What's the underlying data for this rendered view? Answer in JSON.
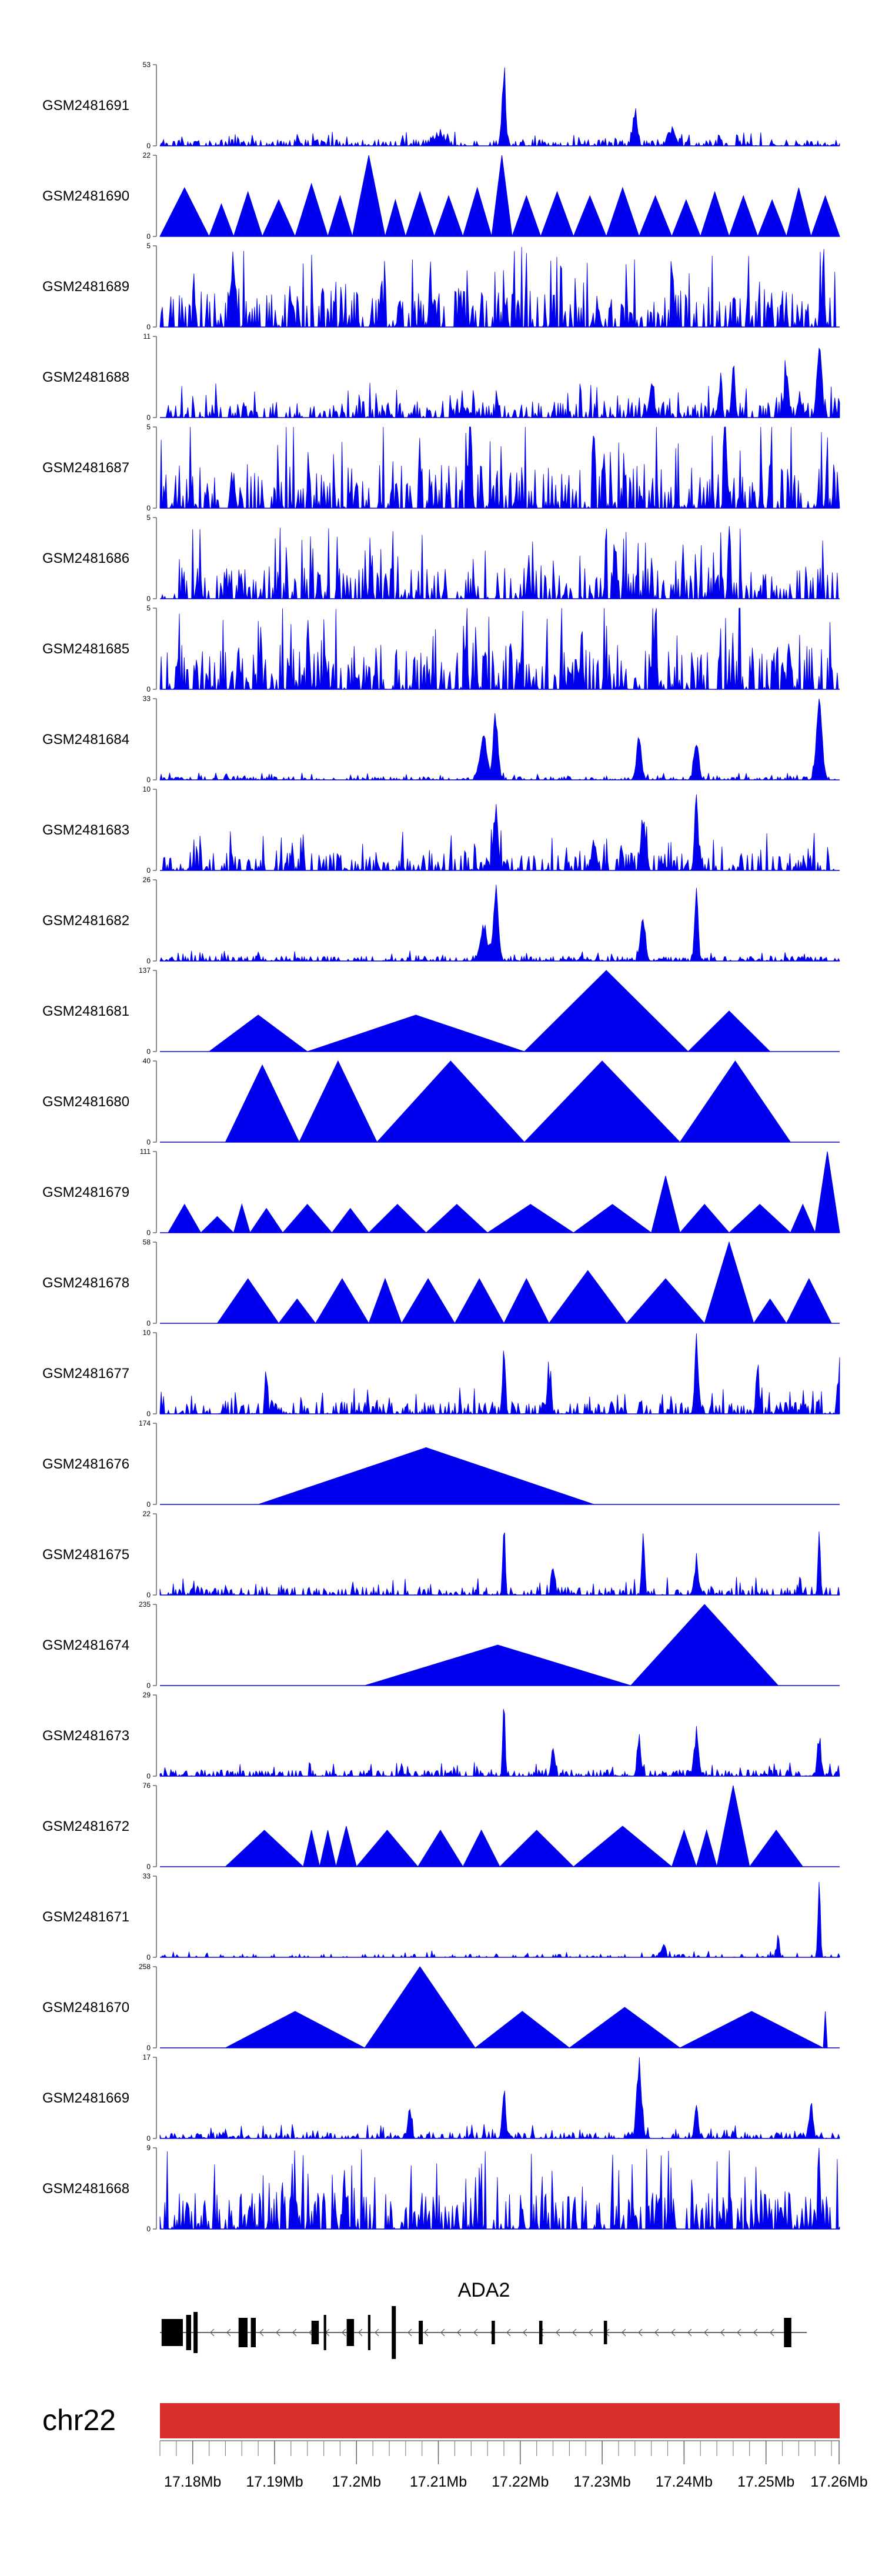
{
  "chart_data": {
    "type": "area",
    "title": "",
    "colors": {
      "signal": "#0000ee",
      "ideogram": "#d9302c",
      "gene": "#000000"
    },
    "x_range": [
      17.176,
      17.259
    ],
    "x_unit": "Mb",
    "x_ticks": [
      "17.18Mb",
      "17.19Mb",
      "17.2Mb",
      "17.21Mb",
      "17.22Mb",
      "17.23Mb",
      "17.24Mb",
      "17.25Mb",
      "17.26Mb"
    ],
    "x_tick_values": [
      17.18,
      17.19,
      17.2,
      17.21,
      17.22,
      17.23,
      17.24,
      17.25,
      17.26
    ],
    "chromosome": "chr22",
    "gene": {
      "name": "ADA2",
      "strand": "-",
      "start": 17.176,
      "end": 17.255
    },
    "tracks": [
      {
        "name": "GSM2481691",
        "ymax": 53,
        "ymin": 0,
        "style": "noise",
        "density": 1.0,
        "scale": 0.08,
        "peaks": [
          [
            17.218,
            1.0,
            0.0003
          ],
          [
            17.234,
            0.42,
            0.0004
          ],
          [
            17.2385,
            0.2,
            0.0006
          ],
          [
            17.21,
            0.12,
            0.001
          ]
        ]
      },
      {
        "name": "GSM2481690",
        "ymax": 22,
        "ymin": 0,
        "style": "triangles",
        "tri": [
          [
            17.176,
            17.182,
            0.6
          ],
          [
            17.182,
            17.185,
            0.4
          ],
          [
            17.185,
            17.1885,
            0.55
          ],
          [
            17.1885,
            17.1925,
            0.45
          ],
          [
            17.1925,
            17.1965,
            0.65
          ],
          [
            17.1965,
            17.1995,
            0.5
          ],
          [
            17.1995,
            17.2035,
            1.0
          ],
          [
            17.2035,
            17.206,
            0.45
          ],
          [
            17.206,
            17.2095,
            0.55
          ],
          [
            17.2095,
            17.213,
            0.5
          ],
          [
            17.213,
            17.2165,
            0.6
          ],
          [
            17.2165,
            17.219,
            1.0
          ],
          [
            17.219,
            17.2225,
            0.5
          ],
          [
            17.2225,
            17.2265,
            0.55
          ],
          [
            17.2265,
            17.2305,
            0.5
          ],
          [
            17.2305,
            17.2345,
            0.6
          ],
          [
            17.2345,
            17.2385,
            0.5
          ],
          [
            17.2385,
            17.242,
            0.45
          ],
          [
            17.242,
            17.2455,
            0.55
          ],
          [
            17.2455,
            17.249,
            0.5
          ],
          [
            17.249,
            17.2525,
            0.45
          ],
          [
            17.2525,
            17.2555,
            0.6
          ],
          [
            17.2555,
            17.259,
            0.5
          ]
        ]
      },
      {
        "name": "GSM2481689",
        "ymax": 5,
        "ymin": 0,
        "style": "noise",
        "density": 1.0,
        "scale": 0.45,
        "peaks": [
          [
            17.185,
            0.9,
            0.0002
          ],
          [
            17.209,
            0.8,
            0.0002
          ],
          [
            17.257,
            0.95,
            0.0002
          ]
        ]
      },
      {
        "name": "GSM2481688",
        "ymax": 11,
        "ymin": 0,
        "style": "noise",
        "density": 1.0,
        "scale": 0.2,
        "peaks": [
          [
            17.2565,
            0.95,
            0.0004
          ],
          [
            17.246,
            0.7,
            0.0003
          ],
          [
            17.2445,
            0.65,
            0.0002
          ],
          [
            17.2525,
            0.5,
            0.0004
          ],
          [
            17.236,
            0.4,
            0.0004
          ]
        ]
      },
      {
        "name": "GSM2481687",
        "ymax": 5,
        "ymin": 0,
        "style": "noise",
        "density": 1.0,
        "scale": 0.55,
        "peaks": [
          [
            17.214,
            0.95,
            0.0002
          ],
          [
            17.245,
            0.9,
            0.0002
          ]
        ]
      },
      {
        "name": "GSM2481686",
        "ymax": 5,
        "ymin": 0,
        "style": "noise",
        "density": 1.0,
        "scale": 0.4,
        "peaks": [
          [
            17.2455,
            0.95,
            0.0002
          ],
          [
            17.2315,
            0.8,
            0.0002
          ]
        ]
      },
      {
        "name": "GSM2481685",
        "ymax": 5,
        "ymin": 0,
        "style": "noise",
        "density": 1.0,
        "scale": 0.55,
        "peaks": [
          [
            17.2275,
            0.95,
            0.0002
          ],
          [
            17.2365,
            0.9,
            0.0002
          ]
        ]
      },
      {
        "name": "GSM2481684",
        "ymax": 33,
        "ymin": 0,
        "style": "noise",
        "density": 1.0,
        "scale": 0.04,
        "peaks": [
          [
            17.217,
            0.9,
            0.0004
          ],
          [
            17.2155,
            0.6,
            0.0006
          ],
          [
            17.2345,
            0.6,
            0.0004
          ],
          [
            17.2415,
            0.55,
            0.0004
          ],
          [
            17.2565,
            1.0,
            0.0005
          ]
        ]
      },
      {
        "name": "GSM2481683",
        "ymax": 10,
        "ymin": 0,
        "style": "noise",
        "density": 1.0,
        "scale": 0.22,
        "peaks": [
          [
            17.217,
            0.8,
            0.0004
          ],
          [
            17.235,
            0.65,
            0.0004
          ],
          [
            17.2415,
            1.0,
            0.0003
          ],
          [
            17.229,
            0.4,
            0.0004
          ]
        ]
      },
      {
        "name": "GSM2481682",
        "ymax": 26,
        "ymin": 0,
        "style": "noise",
        "density": 1.0,
        "scale": 0.06,
        "peaks": [
          [
            17.217,
            1.0,
            0.0004
          ],
          [
            17.2155,
            0.45,
            0.0006
          ],
          [
            17.235,
            0.6,
            0.0004
          ],
          [
            17.2415,
            0.9,
            0.0003
          ]
        ]
      },
      {
        "name": "GSM2481681",
        "ymax": 137,
        "ymin": 0,
        "style": "triangles",
        "tri": [
          [
            17.182,
            17.194,
            0.45
          ],
          [
            17.194,
            17.2205,
            0.45
          ],
          [
            17.2205,
            17.2405,
            1.0
          ],
          [
            17.2405,
            17.2505,
            0.5
          ]
        ]
      },
      {
        "name": "GSM2481680",
        "ymax": 40,
        "ymin": 0,
        "style": "triangles",
        "tri": [
          [
            17.184,
            17.193,
            0.95
          ],
          [
            17.193,
            17.2025,
            1.0
          ],
          [
            17.2025,
            17.2205,
            1.0
          ],
          [
            17.2205,
            17.2395,
            1.0
          ],
          [
            17.2395,
            17.253,
            1.0
          ]
        ]
      },
      {
        "name": "GSM2481679",
        "ymax": 111,
        "ymin": 0,
        "style": "triangles",
        "tri": [
          [
            17.177,
            17.181,
            0.35
          ],
          [
            17.181,
            17.185,
            0.2
          ],
          [
            17.185,
            17.187,
            0.35
          ],
          [
            17.187,
            17.191,
            0.3
          ],
          [
            17.191,
            17.197,
            0.35
          ],
          [
            17.197,
            17.2015,
            0.3
          ],
          [
            17.2015,
            17.2085,
            0.35
          ],
          [
            17.2085,
            17.216,
            0.35
          ],
          [
            17.216,
            17.2265,
            0.35
          ],
          [
            17.2265,
            17.236,
            0.35
          ],
          [
            17.236,
            17.2395,
            0.7
          ],
          [
            17.2395,
            17.2455,
            0.35
          ],
          [
            17.2455,
            17.253,
            0.35
          ],
          [
            17.253,
            17.256,
            0.35
          ],
          [
            17.256,
            17.259,
            1.0
          ]
        ]
      },
      {
        "name": "GSM2481678",
        "ymax": 58,
        "ymin": 0,
        "style": "triangles",
        "tri": [
          [
            17.183,
            17.1905,
            0.55
          ],
          [
            17.1905,
            17.195,
            0.3
          ],
          [
            17.195,
            17.2015,
            0.55
          ],
          [
            17.2015,
            17.2055,
            0.55
          ],
          [
            17.2055,
            17.212,
            0.55
          ],
          [
            17.212,
            17.218,
            0.55
          ],
          [
            17.218,
            17.2235,
            0.55
          ],
          [
            17.2235,
            17.233,
            0.65
          ],
          [
            17.233,
            17.2425,
            0.55
          ],
          [
            17.2425,
            17.2485,
            1.0
          ],
          [
            17.2485,
            17.2525,
            0.3
          ],
          [
            17.2525,
            17.258,
            0.55
          ]
        ]
      },
      {
        "name": "GSM2481677",
        "ymax": 10,
        "ymin": 0,
        "style": "noise",
        "density": 1.0,
        "scale": 0.15,
        "peaks": [
          [
            17.218,
            1.0,
            0.0002
          ],
          [
            17.2415,
            0.85,
            0.0003
          ],
          [
            17.249,
            0.75,
            0.0002
          ],
          [
            17.259,
            0.7,
            0.0002
          ],
          [
            17.2235,
            0.55,
            0.0003
          ],
          [
            17.189,
            0.55,
            0.0002
          ]
        ]
      },
      {
        "name": "GSM2481676",
        "ymax": 174,
        "ymin": 0,
        "style": "triangles",
        "tri": [
          [
            17.188,
            17.229,
            0.7
          ]
        ]
      },
      {
        "name": "GSM2481675",
        "ymax": 22,
        "ymin": 0,
        "style": "noise",
        "density": 1.0,
        "scale": 0.1,
        "peaks": [
          [
            17.218,
            1.0,
            0.0002
          ],
          [
            17.235,
            0.9,
            0.0002
          ],
          [
            17.2565,
            0.85,
            0.0002
          ],
          [
            17.2415,
            0.4,
            0.0004
          ],
          [
            17.224,
            0.35,
            0.0003
          ]
        ]
      },
      {
        "name": "GSM2481674",
        "ymax": 235,
        "ymin": 0,
        "style": "triangles",
        "tri": [
          [
            17.201,
            17.2335,
            0.5
          ],
          [
            17.2335,
            17.2515,
            1.0
          ]
        ]
      },
      {
        "name": "GSM2481673",
        "ymax": 29,
        "ymin": 0,
        "style": "noise",
        "density": 1.0,
        "scale": 0.08,
        "peaks": [
          [
            17.218,
            1.0,
            0.0002
          ],
          [
            17.2415,
            0.55,
            0.0004
          ],
          [
            17.2345,
            0.5,
            0.0003
          ],
          [
            17.2565,
            0.5,
            0.0003
          ],
          [
            17.224,
            0.35,
            0.0003
          ]
        ]
      },
      {
        "name": "GSM2481672",
        "ymax": 76,
        "ymin": 0,
        "style": "triangles",
        "tri": [
          [
            17.184,
            17.1935,
            0.45
          ],
          [
            17.1935,
            17.1955,
            0.45
          ],
          [
            17.1955,
            17.1975,
            0.45
          ],
          [
            17.1975,
            17.2,
            0.5
          ],
          [
            17.2,
            17.2075,
            0.45
          ],
          [
            17.2075,
            17.213,
            0.45
          ],
          [
            17.213,
            17.2175,
            0.45
          ],
          [
            17.2175,
            17.2265,
            0.45
          ],
          [
            17.2265,
            17.2385,
            0.5
          ],
          [
            17.2385,
            17.2415,
            0.45
          ],
          [
            17.2415,
            17.244,
            0.45
          ],
          [
            17.244,
            17.248,
            1.0
          ],
          [
            17.248,
            17.2545,
            0.45
          ]
        ]
      },
      {
        "name": "GSM2481671",
        "ymax": 33,
        "ymin": 0,
        "style": "noise",
        "density": 0.5,
        "scale": 0.04,
        "peaks": [
          [
            17.2565,
            1.0,
            0.0002
          ],
          [
            17.2515,
            0.3,
            0.0002
          ],
          [
            17.2375,
            0.2,
            0.0003
          ]
        ]
      },
      {
        "name": "GSM2481670",
        "ymax": 258,
        "ymin": 0,
        "style": "triangles",
        "tri": [
          [
            17.184,
            17.201,
            0.45
          ],
          [
            17.201,
            17.2145,
            1.0
          ],
          [
            17.2145,
            17.226,
            0.45
          ],
          [
            17.226,
            17.2395,
            0.5
          ],
          [
            17.2395,
            17.257,
            0.45
          ],
          [
            17.257,
            17.2575,
            0.45
          ]
        ]
      },
      {
        "name": "GSM2481669",
        "ymax": 17,
        "ymin": 0,
        "style": "noise",
        "density": 1.0,
        "scale": 0.08,
        "peaks": [
          [
            17.2345,
            0.95,
            0.0004
          ],
          [
            17.218,
            0.6,
            0.0003
          ],
          [
            17.2415,
            0.45,
            0.0003
          ],
          [
            17.2555,
            0.45,
            0.0003
          ],
          [
            17.2065,
            0.4,
            0.0003
          ]
        ]
      },
      {
        "name": "GSM2481668",
        "ymax": 9,
        "ymin": 0,
        "style": "noise",
        "density": 1.0,
        "scale": 0.45,
        "peaks": [
          [
            17.1985,
            0.95,
            0.0002
          ],
          [
            17.2565,
            0.9,
            0.0002
          ]
        ]
      }
    ]
  }
}
